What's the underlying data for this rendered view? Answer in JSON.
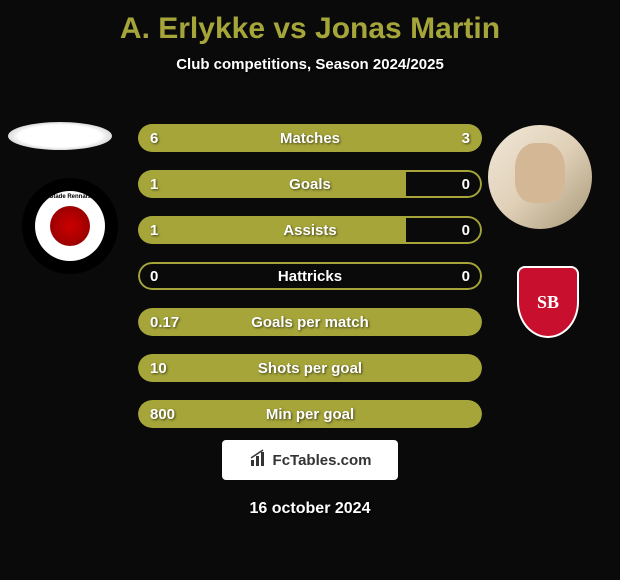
{
  "title": "A. Erlykke vs Jonas Martin",
  "subtitle": "Club competitions, Season 2024/2025",
  "date": "16 october 2024",
  "watermark_text": "FcTables.com",
  "colors": {
    "background": "#0a0a0a",
    "accent": "#a5a53a",
    "text": "#ffffff",
    "club_right_shield": "#c8102e"
  },
  "player_left": {
    "name": "A. Erlykke",
    "club": "Stade Rennais"
  },
  "player_right": {
    "name": "Jonas Martin",
    "club": "SB29"
  },
  "club_right_badge_text": "SB",
  "stats": [
    {
      "label": "Matches",
      "left_val": "6",
      "right_val": "3",
      "left_pct": 67,
      "right_pct": 33,
      "mode": "split"
    },
    {
      "label": "Goals",
      "left_val": "1",
      "right_val": "0",
      "left_pct": 78,
      "right_pct": 0,
      "mode": "split"
    },
    {
      "label": "Assists",
      "left_val": "1",
      "right_val": "0",
      "left_pct": 78,
      "right_pct": 0,
      "mode": "split"
    },
    {
      "label": "Hattricks",
      "left_val": "0",
      "right_val": "0",
      "left_pct": 0,
      "right_pct": 0,
      "mode": "empty"
    },
    {
      "label": "Goals per match",
      "left_val": "0.17",
      "right_val": "",
      "left_pct": 100,
      "right_pct": 0,
      "mode": "full"
    },
    {
      "label": "Shots per goal",
      "left_val": "10",
      "right_val": "",
      "left_pct": 100,
      "right_pct": 0,
      "mode": "full"
    },
    {
      "label": "Min per goal",
      "left_val": "800",
      "right_val": "",
      "left_pct": 100,
      "right_pct": 0,
      "mode": "full"
    }
  ]
}
